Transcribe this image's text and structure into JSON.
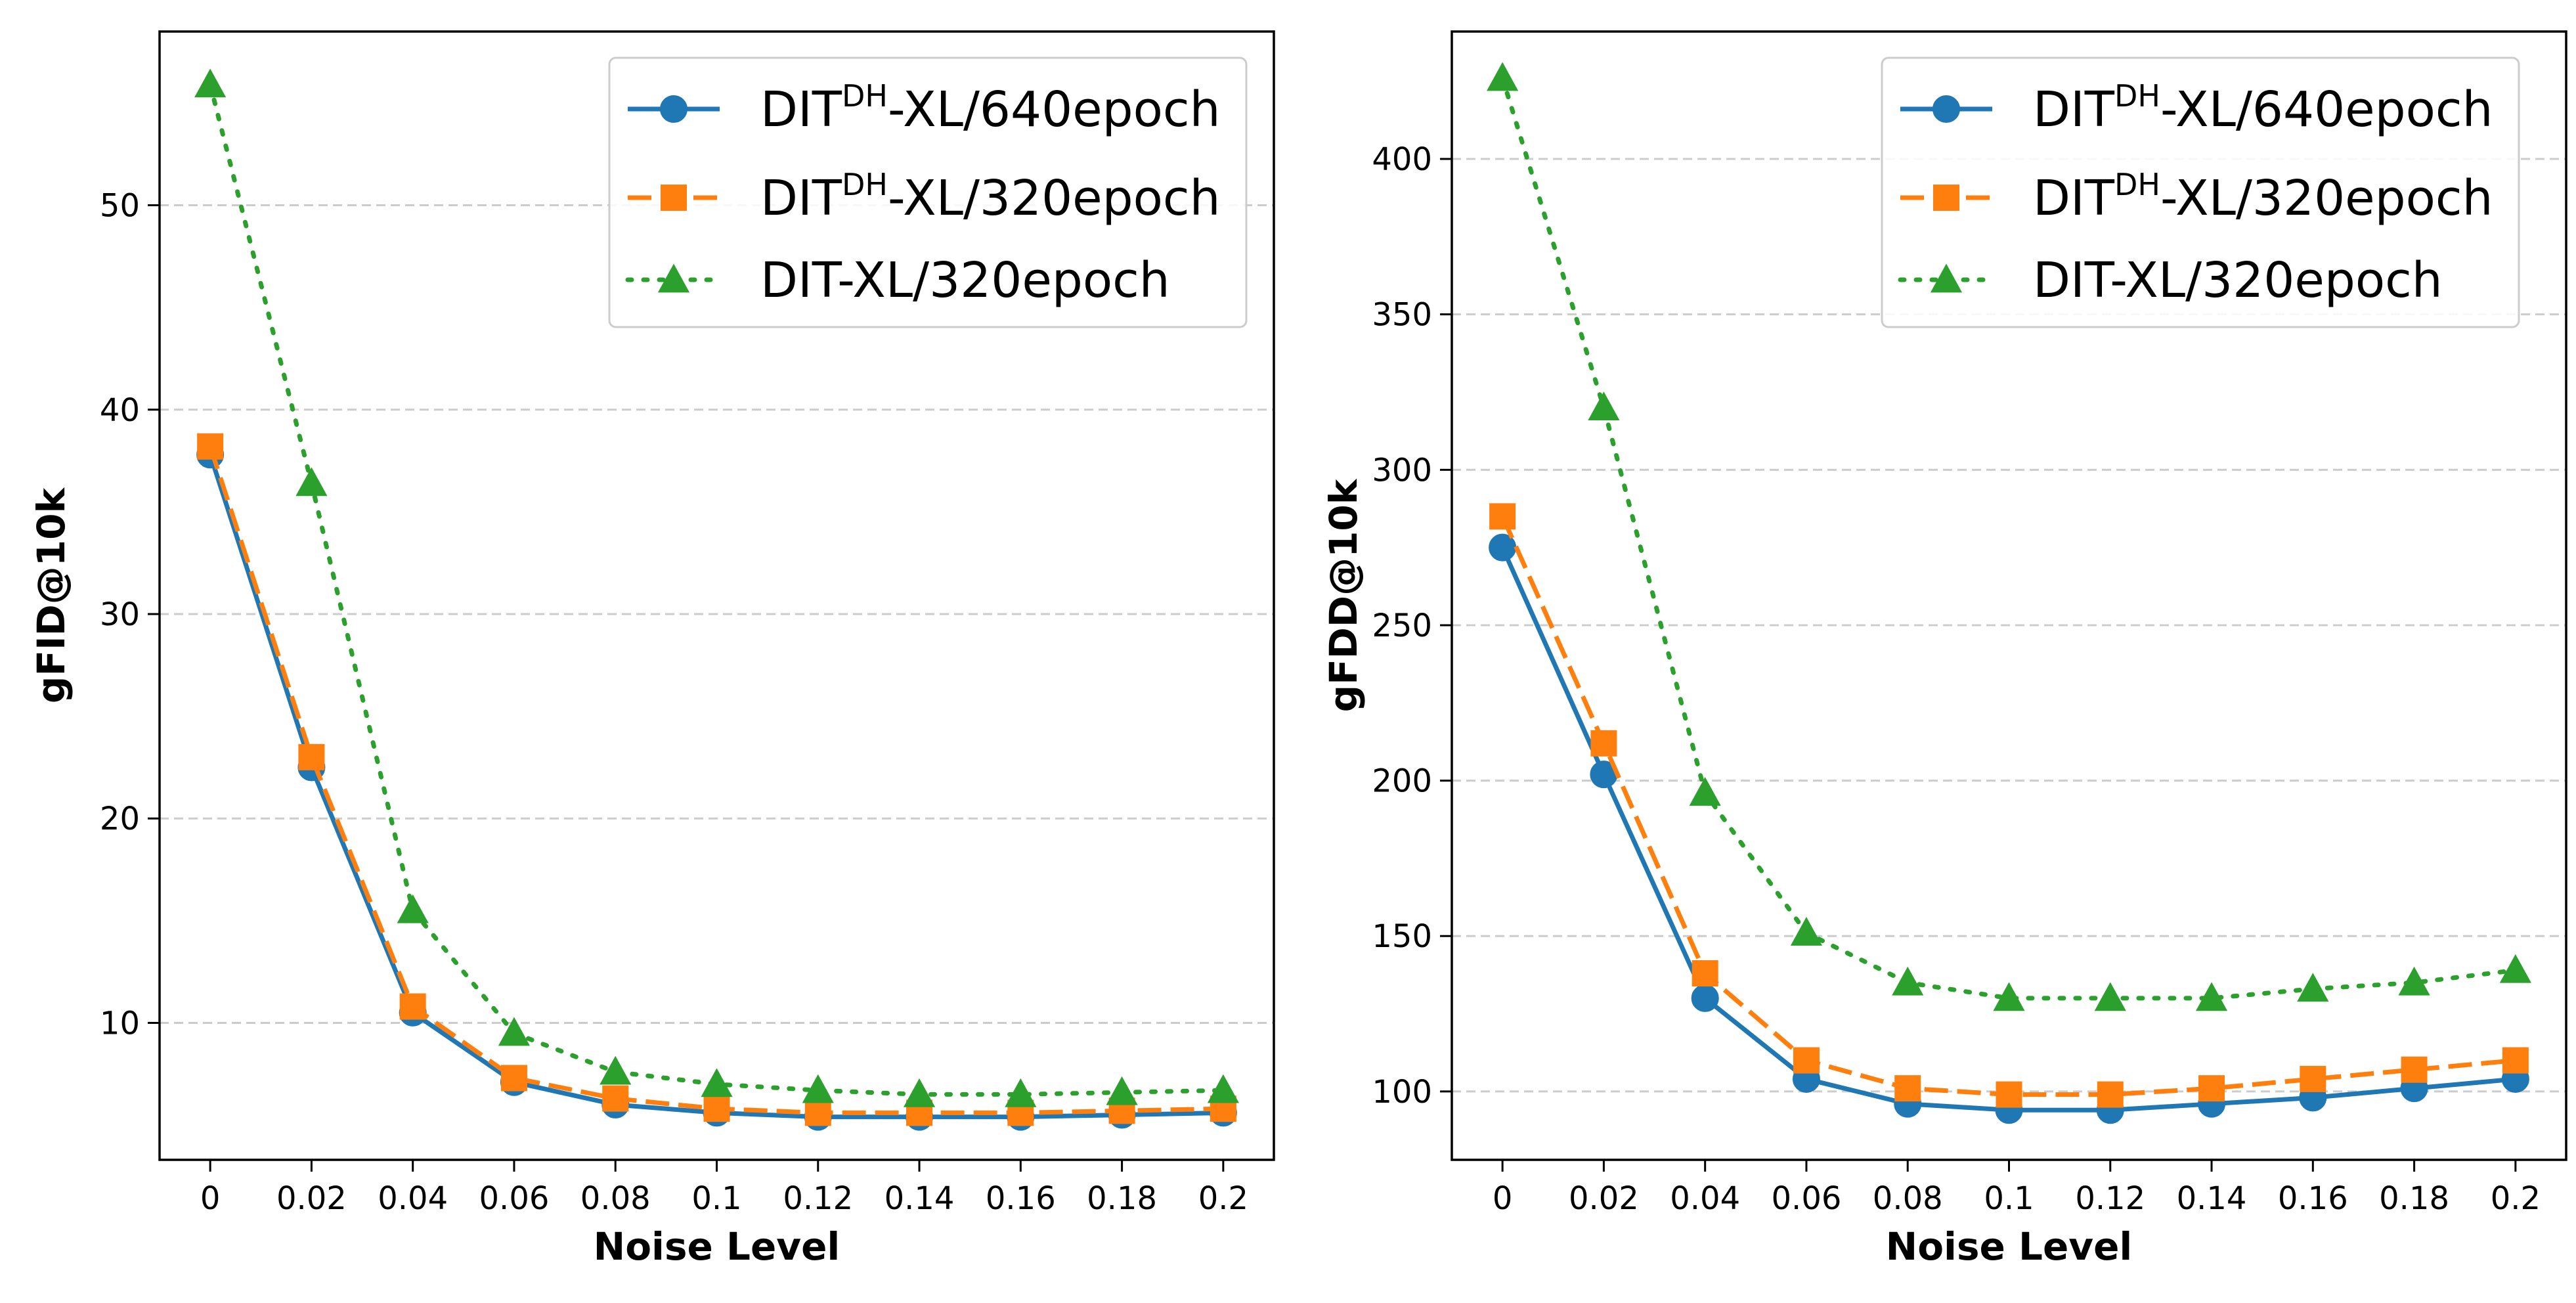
{
  "colors": {
    "series_blue": "#1f77b4",
    "series_orange": "#ff7f0e",
    "series_green": "#2ca02c",
    "grid": "#cccccc"
  },
  "chart_data": [
    {
      "type": "line",
      "xlabel": "Noise Level",
      "ylabel": "gFID@10k",
      "x": [
        0,
        0.02,
        0.04,
        0.06,
        0.08,
        0.1,
        0.12,
        0.14,
        0.16,
        0.18,
        0.2
      ],
      "x_tick_labels": [
        "0",
        "0.02",
        "0.04",
        "0.06",
        "0.08",
        "0.1",
        "0.12",
        "0.14",
        "0.16",
        "0.18",
        "0.2"
      ],
      "y_ticks": [
        10,
        20,
        30,
        40,
        50
      ],
      "xlim": [
        -0.01,
        0.21
      ],
      "ylim": [
        3.3,
        58.5
      ],
      "grid": "horizontal dashed",
      "legend_position": "top-right",
      "series": [
        {
          "name": "DIT-XL/640epoch",
          "label_base": "DIT",
          "label_sup": "DH",
          "label_rest": "-XL/640epoch",
          "color": "#1f77b4",
          "marker": "circle",
          "linestyle": "solid",
          "values": [
            37.8,
            22.5,
            10.5,
            7.1,
            6.0,
            5.6,
            5.4,
            5.4,
            5.4,
            5.5,
            5.6
          ]
        },
        {
          "name": "DIT-XL/320epoch",
          "label_base": "DIT",
          "label_sup": "DH",
          "label_rest": "-XL/320epoch",
          "color": "#ff7f0e",
          "marker": "square",
          "linestyle": "dashed",
          "values": [
            38.2,
            23.0,
            10.8,
            7.3,
            6.3,
            5.8,
            5.6,
            5.6,
            5.6,
            5.7,
            5.8
          ]
        },
        {
          "name": "DIT-XL/320epoch",
          "label_base": "DIT-XL/320epoch",
          "label_sup": "",
          "label_rest": "",
          "color": "#2ca02c",
          "marker": "triangle",
          "linestyle": "dotted",
          "values": [
            55.9,
            36.4,
            15.5,
            9.5,
            7.6,
            7.0,
            6.7,
            6.5,
            6.5,
            6.6,
            6.7
          ]
        }
      ]
    },
    {
      "type": "line",
      "xlabel": "Noise Level",
      "ylabel": "gFDD@10k",
      "x": [
        0,
        0.02,
        0.04,
        0.06,
        0.08,
        0.1,
        0.12,
        0.14,
        0.16,
        0.18,
        0.2
      ],
      "x_tick_labels": [
        "0",
        "0.02",
        "0.04",
        "0.06",
        "0.08",
        "0.1",
        "0.12",
        "0.14",
        "0.16",
        "0.18",
        "0.2"
      ],
      "y_ticks": [
        100,
        150,
        200,
        250,
        300,
        350,
        400
      ],
      "xlim": [
        -0.01,
        0.21
      ],
      "ylim": [
        78,
        441
      ],
      "grid": "horizontal dashed",
      "legend_position": "top-right",
      "series": [
        {
          "name": "DIT-XL/640epoch",
          "label_base": "DIT",
          "label_sup": "DH",
          "label_rest": "-XL/640epoch",
          "color": "#1f77b4",
          "marker": "circle",
          "linestyle": "solid",
          "values": [
            275,
            202,
            130,
            104,
            96,
            94,
            94,
            96,
            98,
            101,
            104
          ]
        },
        {
          "name": "DIT-XL/320epoch",
          "label_base": "DIT",
          "label_sup": "DH",
          "label_rest": "-XL/320epoch",
          "color": "#ff7f0e",
          "marker": "square",
          "linestyle": "dashed",
          "values": [
            285,
            212,
            138,
            110,
            101,
            99,
            99,
            101,
            104,
            107,
            110
          ]
        },
        {
          "name": "DIT-XL/320epoch",
          "label_base": "DIT-XL/320epoch",
          "label_sup": "",
          "label_rest": "",
          "color": "#2ca02c",
          "marker": "triangle",
          "linestyle": "dotted",
          "values": [
            426,
            320,
            196,
            151,
            135,
            130,
            130,
            130,
            133,
            135,
            139
          ]
        }
      ]
    }
  ]
}
